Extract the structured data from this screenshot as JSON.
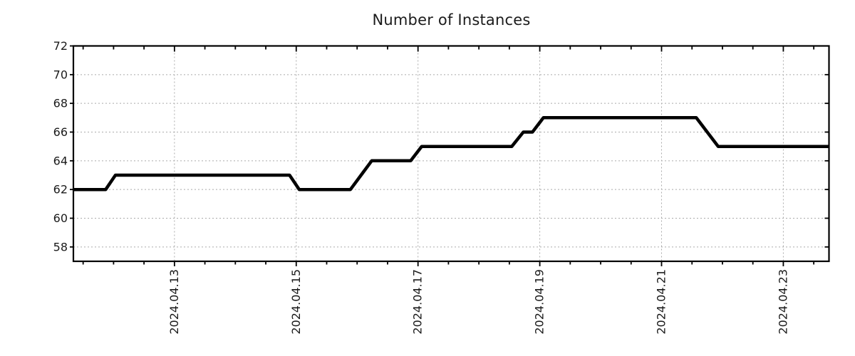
{
  "page": {
    "background": "#ffffff"
  },
  "chart_data": {
    "type": "line",
    "title": "Number of Instances",
    "x_axis": {
      "t_unit": "days_after_2024.04.13",
      "tick_labels": [
        "2024.04.13",
        "2024.04.15",
        "2024.04.17",
        "2024.04.19",
        "2024.04.21",
        "2024.04.23"
      ],
      "tick_positions_days": [
        0,
        2,
        4,
        6,
        8,
        10
      ],
      "minor_tick_interval_days": 0.5,
      "range_days": [
        -1.66,
        10.75
      ],
      "labels_rotated_degrees": -90
    },
    "y_axis": {
      "tick_labels": [
        "58",
        "60",
        "62",
        "64",
        "66",
        "68",
        "70",
        "72"
      ],
      "ticks": [
        58,
        60,
        62,
        64,
        66,
        68,
        70,
        72
      ],
      "range": [
        57,
        72
      ]
    },
    "grid": {
      "show": true,
      "color": "#ababab",
      "style": "dashed"
    },
    "frame_color": "#000000",
    "series": [
      {
        "name": "Number of Instances",
        "color": "#000000",
        "line_width": 4.5,
        "points": [
          [
            -1.66,
            62
          ],
          [
            -1.13,
            62
          ],
          [
            -0.97,
            63
          ],
          [
            1.89,
            63
          ],
          [
            2.05,
            62
          ],
          [
            2.89,
            62
          ],
          [
            3.24,
            64
          ],
          [
            3.88,
            64
          ],
          [
            4.06,
            65
          ],
          [
            5.54,
            65
          ],
          [
            5.73,
            66
          ],
          [
            5.88,
            66
          ],
          [
            6.06,
            67
          ],
          [
            8.57,
            67
          ],
          [
            8.93,
            65
          ],
          [
            10.75,
            65
          ]
        ]
      }
    ]
  }
}
